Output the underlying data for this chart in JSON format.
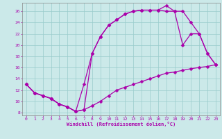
{
  "xlabel": "Windchill (Refroidissement éolien,°C)",
  "bg_color": "#cbe9e9",
  "line_color": "#aa00aa",
  "grid_color": "#99cccc",
  "xlim": [
    -0.5,
    23.5
  ],
  "ylim": [
    7.5,
    27.5
  ],
  "yticks": [
    8,
    10,
    12,
    14,
    16,
    18,
    20,
    22,
    24,
    26
  ],
  "xticks": [
    0,
    1,
    2,
    3,
    4,
    5,
    6,
    7,
    8,
    9,
    10,
    11,
    12,
    13,
    14,
    15,
    16,
    17,
    18,
    19,
    20,
    21,
    22,
    23
  ],
  "series1_x": [
    0,
    1,
    2,
    3,
    4,
    5,
    6,
    7,
    8,
    9,
    10,
    11,
    12,
    13,
    14,
    15,
    16,
    17,
    18,
    19,
    20,
    21,
    22,
    23
  ],
  "series1_y": [
    13,
    11.5,
    11,
    10.5,
    9.5,
    9.0,
    8.2,
    8.5,
    9.2,
    10.0,
    11.0,
    12.0,
    12.5,
    13.0,
    13.5,
    14.0,
    14.5,
    15.0,
    15.2,
    15.5,
    15.8,
    16.0,
    16.2,
    16.5
  ],
  "series2_x": [
    0,
    1,
    2,
    3,
    4,
    5,
    6,
    7,
    8,
    9,
    10,
    11,
    12,
    13,
    14,
    15,
    16,
    17,
    18,
    19,
    20,
    21,
    22,
    23
  ],
  "series2_y": [
    13,
    11.5,
    11,
    10.5,
    9.5,
    9.0,
    8.2,
    8.5,
    18.5,
    21.5,
    23.5,
    24.5,
    25.5,
    26.0,
    26.2,
    26.2,
    26.2,
    27.0,
    26.0,
    26.0,
    24.0,
    22.0,
    18.5,
    16.5
  ],
  "series3_x": [
    0,
    1,
    2,
    3,
    4,
    5,
    6,
    7,
    8,
    9,
    10,
    11,
    12,
    13,
    14,
    15,
    16,
    17,
    18,
    19,
    20,
    21,
    22,
    23
  ],
  "series3_y": [
    13,
    11.5,
    11,
    10.5,
    9.5,
    9.0,
    8.2,
    13.0,
    18.5,
    21.5,
    23.5,
    24.5,
    25.5,
    26.0,
    26.2,
    26.2,
    26.2,
    26.0,
    26.0,
    20.0,
    22.0,
    22.0,
    18.5,
    16.5
  ]
}
